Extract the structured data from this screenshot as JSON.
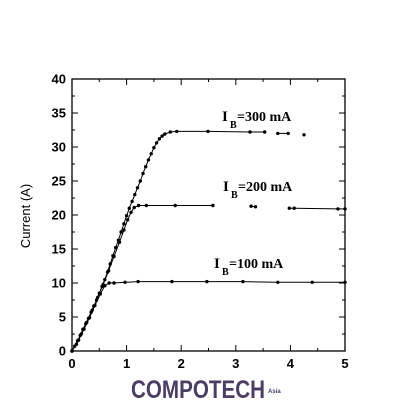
{
  "chart_data": {
    "type": "line",
    "ylabel": "Current (A)",
    "xlim": [
      0,
      5
    ],
    "ylim": [
      0,
      40
    ],
    "xticks": [
      0,
      1,
      2,
      3,
      4,
      5
    ],
    "yticks": [
      0,
      5,
      10,
      15,
      20,
      25,
      30,
      35,
      40
    ],
    "grid": false,
    "series": [
      {
        "label": {
          "symbol": "I",
          "subscript": "B",
          "value": "=300 mA"
        },
        "points": [
          [
            0,
            0
          ],
          [
            0.05,
            0.7
          ],
          [
            0.1,
            1.5
          ],
          [
            0.15,
            2.3
          ],
          [
            0.2,
            3.2
          ],
          [
            0.25,
            4.0
          ],
          [
            0.3,
            4.8
          ],
          [
            0.35,
            5.7
          ],
          [
            0.4,
            6.6
          ],
          [
            0.45,
            7.5
          ],
          [
            0.5,
            8.5
          ],
          [
            0.55,
            9.5
          ],
          [
            0.6,
            10.5
          ],
          [
            0.65,
            11.6
          ],
          [
            0.7,
            12.8
          ],
          [
            0.75,
            14.0
          ],
          [
            0.8,
            15.2
          ],
          [
            0.85,
            16.3
          ],
          [
            0.9,
            17.5
          ],
          [
            0.95,
            18.7
          ],
          [
            1.0,
            19.9
          ],
          [
            1.05,
            21.0
          ],
          [
            1.1,
            22.0
          ],
          [
            1.15,
            23.0
          ],
          [
            1.2,
            24.0
          ],
          [
            1.25,
            25.0
          ],
          [
            1.3,
            26.1
          ],
          [
            1.35,
            27.1
          ],
          [
            1.4,
            28.1
          ],
          [
            1.45,
            29.0
          ],
          [
            1.5,
            29.9
          ],
          [
            1.55,
            30.6
          ],
          [
            1.6,
            31.2
          ],
          [
            1.65,
            31.6
          ],
          [
            1.7,
            31.9
          ],
          [
            1.8,
            32.2
          ],
          [
            1.92,
            32.3
          ],
          [
            2.49,
            32.3
          ],
          [
            3.26,
            32.2
          ],
          [
            3.53,
            32.2
          ],
          null,
          [
            3.77,
            32.0
          ],
          [
            3.96,
            32.0
          ],
          null,
          [
            4.25,
            31.8
          ]
        ]
      },
      {
        "label": {
          "symbol": "I",
          "subscript": "B",
          "value": "=200 mA"
        },
        "points": [
          [
            0,
            0
          ],
          [
            0.08,
            1.0
          ],
          [
            0.17,
            2.5
          ],
          [
            0.27,
            4.2
          ],
          [
            0.37,
            6.0
          ],
          [
            0.47,
            7.9
          ],
          [
            0.57,
            9.8
          ],
          [
            0.67,
            11.8
          ],
          [
            0.77,
            13.9
          ],
          [
            0.87,
            16.0
          ],
          [
            0.95,
            17.8
          ],
          [
            1.02,
            19.3
          ],
          [
            1.08,
            20.4
          ],
          [
            1.14,
            21.1
          ],
          [
            1.22,
            21.4
          ],
          [
            1.36,
            21.4
          ],
          [
            1.89,
            21.4
          ],
          [
            2.58,
            21.4
          ],
          null,
          [
            3.28,
            21.3
          ],
          [
            3.36,
            21.2
          ],
          null,
          [
            3.98,
            21.0
          ],
          [
            4.07,
            21.0
          ],
          [
            4.87,
            20.9
          ],
          [
            5.0,
            20.9
          ]
        ]
      },
      {
        "label": {
          "symbol": "I",
          "subscript": "B",
          "value": "=100 mA"
        },
        "points": [
          [
            0,
            0
          ],
          [
            0.12,
            1.6
          ],
          [
            0.22,
            3.2
          ],
          [
            0.32,
            4.9
          ],
          [
            0.42,
            6.7
          ],
          [
            0.52,
            8.4
          ],
          [
            0.6,
            9.6
          ],
          [
            0.68,
            10.0
          ],
          [
            0.77,
            10.0
          ],
          [
            0.97,
            10.1
          ],
          [
            1.21,
            10.2
          ],
          [
            1.83,
            10.2
          ],
          [
            2.47,
            10.2
          ],
          [
            3.13,
            10.2
          ],
          [
            3.77,
            10.1
          ],
          [
            4.4,
            10.1
          ],
          [
            5.0,
            10.1
          ]
        ]
      }
    ]
  },
  "colors": {
    "marks": "#000000",
    "watermark": "#4b3d63"
  },
  "watermark": {
    "text": "COMPOTECH",
    "suffix": "Asia"
  }
}
